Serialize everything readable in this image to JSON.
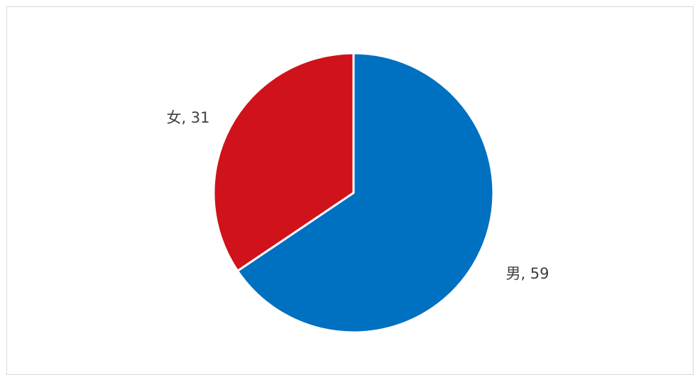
{
  "chart_data": {
    "type": "pie",
    "title": "",
    "categories": [
      "男",
      "女"
    ],
    "values": [
      59,
      31
    ],
    "colors": [
      "#0070c0",
      "#d0121b"
    ],
    "data_labels": [
      "男, 59",
      "女, 31"
    ],
    "start_angle_deg": 0,
    "direction": "clockwise",
    "slice_border_color": "#ffffff",
    "legend": "none"
  }
}
